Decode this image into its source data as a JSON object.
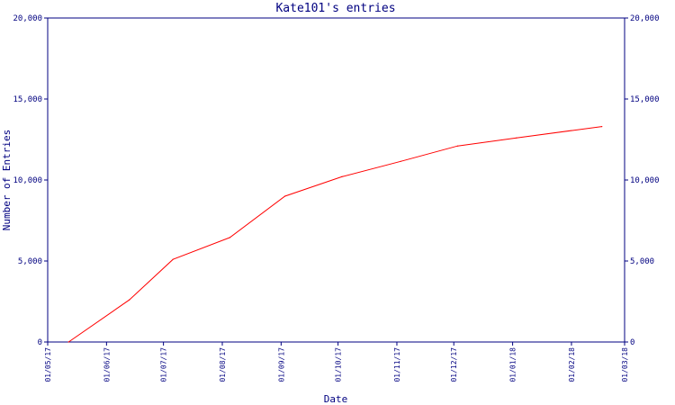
{
  "chart_data": {
    "type": "line",
    "title": "Kate101's entries",
    "xlabel": "Date",
    "ylabel": "Number of Entries",
    "ylim": [
      0,
      20000
    ],
    "xlim": [
      "2017-05-01",
      "2018-03-01"
    ],
    "y_ticks": [
      {
        "value": 0,
        "label": "0"
      },
      {
        "value": 5000,
        "label": "5,000"
      },
      {
        "value": 10000,
        "label": "10,000"
      },
      {
        "value": 15000,
        "label": "15,000"
      },
      {
        "value": 20000,
        "label": "20,000"
      }
    ],
    "x_ticks": [
      {
        "value": "2017-05-01",
        "label": "01/05/17"
      },
      {
        "value": "2017-06-01",
        "label": "01/06/17"
      },
      {
        "value": "2017-07-01",
        "label": "01/07/17"
      },
      {
        "value": "2017-08-01",
        "label": "01/08/17"
      },
      {
        "value": "2017-09-01",
        "label": "01/09/17"
      },
      {
        "value": "2017-10-01",
        "label": "01/10/17"
      },
      {
        "value": "2017-11-01",
        "label": "01/11/17"
      },
      {
        "value": "2017-12-01",
        "label": "01/12/17"
      },
      {
        "value": "2018-01-01",
        "label": "01/01/18"
      },
      {
        "value": "2018-02-01",
        "label": "01/02/18"
      },
      {
        "value": "2018-03-01",
        "label": "01/03/18"
      }
    ],
    "series": [
      {
        "color": "#ff0000",
        "points": [
          {
            "x": "2017-05-12",
            "y": 0
          },
          {
            "x": "2017-06-13",
            "y": 2600
          },
          {
            "x": "2017-07-06",
            "y": 5100
          },
          {
            "x": "2017-08-05",
            "y": 6450
          },
          {
            "x": "2017-09-03",
            "y": 9000
          },
          {
            "x": "2017-10-03",
            "y": 10200
          },
          {
            "x": "2017-11-03",
            "y": 11150
          },
          {
            "x": "2017-12-03",
            "y": 12100
          },
          {
            "x": "2018-01-03",
            "y": 12600
          },
          {
            "x": "2018-02-17",
            "y": 13300
          }
        ]
      }
    ],
    "axis_color": "#000080",
    "text_color": "#000080",
    "grid": false,
    "legend": "none"
  }
}
